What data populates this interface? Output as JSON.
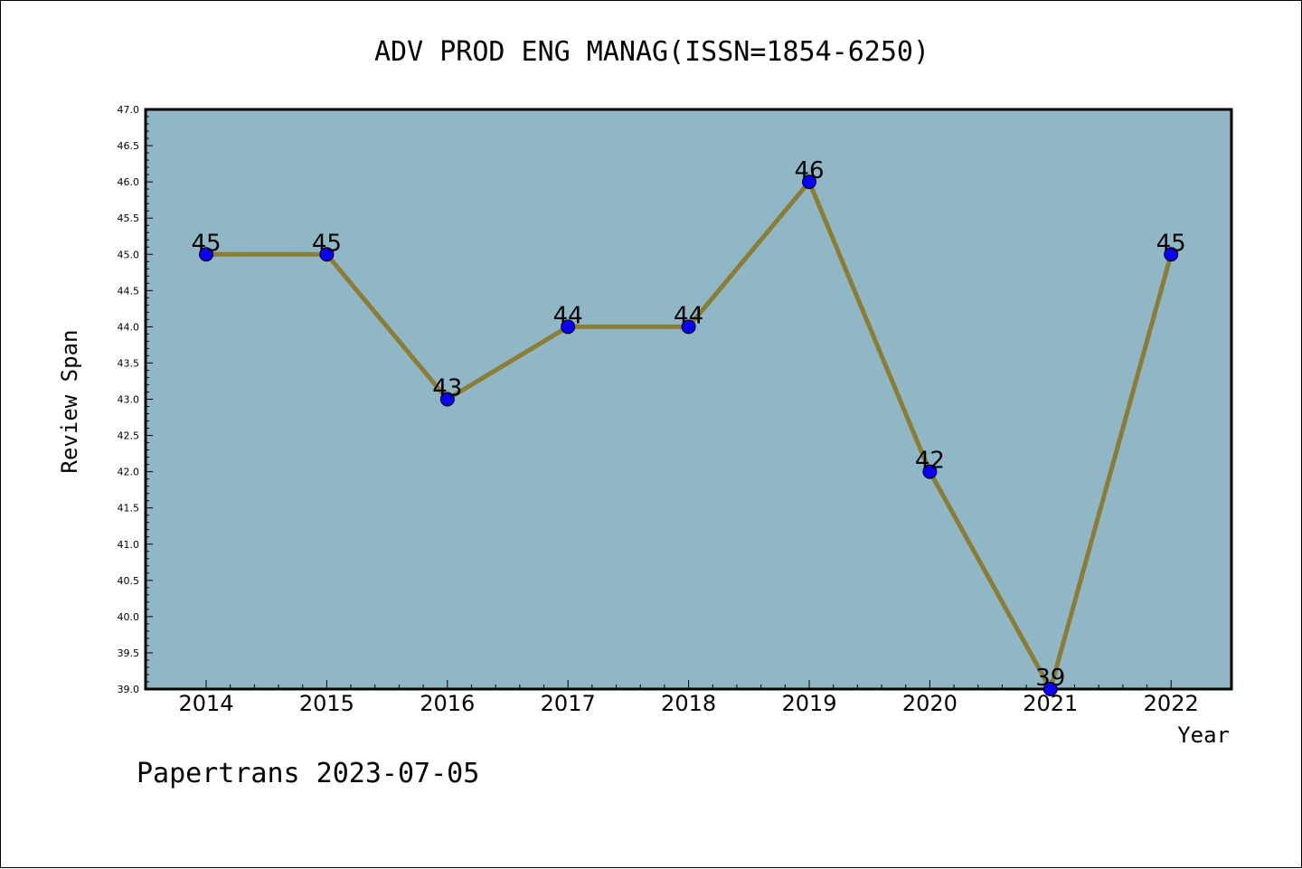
{
  "chart_data": {
    "type": "line",
    "title": "ADV PROD ENG MANAG(ISSN=1854-6250)",
    "xlabel": "Year",
    "ylabel": "Review Span",
    "categories": [
      "2014",
      "2015",
      "2016",
      "2017",
      "2018",
      "2019",
      "2020",
      "2021",
      "2022"
    ],
    "series": [
      {
        "values": [
          45,
          45,
          43,
          44,
          44,
          46,
          42,
          39,
          45
        ]
      }
    ],
    "data_labels": [
      "45",
      "45",
      "43",
      "44",
      "44",
      "46",
      "42",
      "39",
      "45"
    ],
    "ylim": [
      39.0,
      47.0
    ],
    "yticks": [
      "39.0",
      "39.5",
      "40.0",
      "40.5",
      "41.0",
      "41.5",
      "42.0",
      "42.5",
      "43.0",
      "43.5",
      "44.0",
      "44.5",
      "45.0",
      "45.5",
      "46.0",
      "46.5",
      "47.0"
    ],
    "grid": false,
    "colors": {
      "plot_background": "#8fb7c5",
      "line": "#8b7d35",
      "marker": "#0a00f5"
    }
  },
  "footer": "Papertrans 2023-07-05"
}
